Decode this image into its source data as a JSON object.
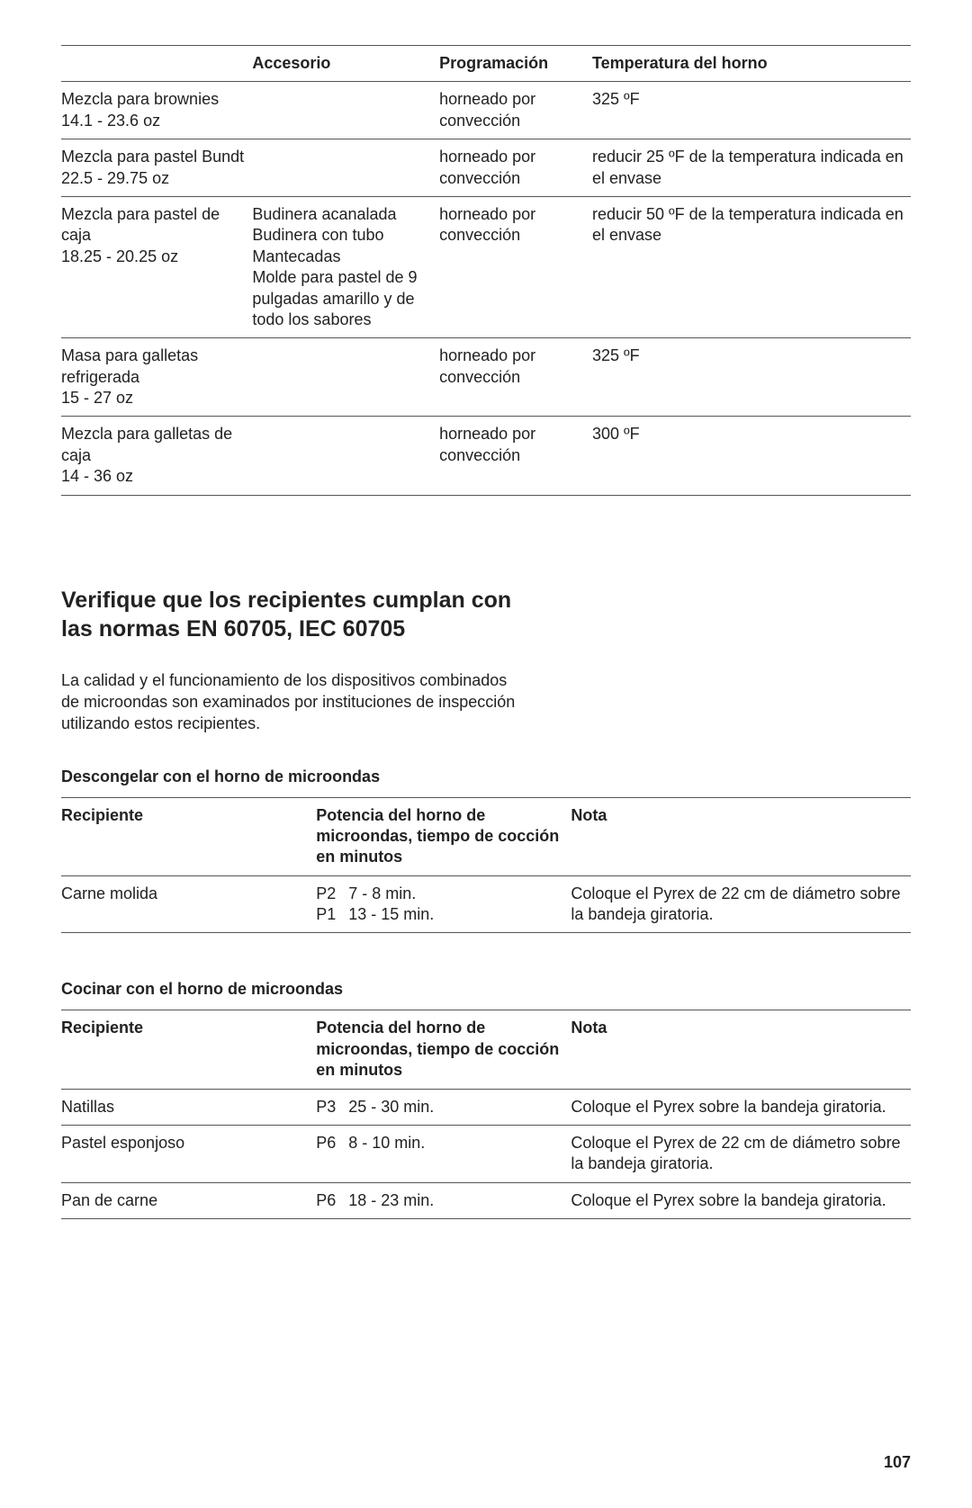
{
  "table1": {
    "headers": [
      "",
      "Accesorio",
      "Programación",
      "Temperatura del horno"
    ],
    "rows": [
      {
        "item": "Mezcla para brownies\n14.1 - 23.6 oz",
        "accesorio": "",
        "programacion": "horneado por convección",
        "temperatura": "325 ºF"
      },
      {
        "item": "Mezcla para pastel Bundt\n22.5 - 29.75 oz",
        "accesorio": "",
        "programacion": "horneado por convección",
        "temperatura": "reducir 25 ºF de la temperatura indicada en el envase"
      },
      {
        "item": "Mezcla para pastel de caja\n18.25 - 20.25 oz",
        "accesorio": "Budinera acanalada\nBudinera con tubo\nMantecadas\nMolde para pastel de 9 pulgadas amarillo y de todo los sabores",
        "programacion": "horneado por convección",
        "temperatura": "reducir 50 ºF de la temperatura indicada en el envase"
      },
      {
        "item": "Masa para galletas refrigerada\n15 - 27 oz",
        "accesorio": "",
        "programacion": "horneado por convección",
        "temperatura": "325 ºF"
      },
      {
        "item": "Mezcla para galletas de caja\n14 - 36 oz",
        "accesorio": "",
        "programacion": "horneado por convección",
        "temperatura": "300 ºF"
      }
    ]
  },
  "section": {
    "heading": "Verifique que los recipientes cumplan con las normas EN 60705, IEC 60705",
    "intro": "La calidad y el funcionamiento de los dispositivos combinados de microondas son examinados por instituciones de inspección utilizando estos recipientes."
  },
  "table2": {
    "title": "Descongelar con el horno de microondas",
    "headers": [
      "Recipiente",
      "Potencia del horno de microondas, tiempo de cocción en minutos",
      "Nota"
    ],
    "rows": [
      {
        "recipiente": "Carne molida",
        "powers": [
          {
            "code": "P2",
            "time": "7 - 8 min."
          },
          {
            "code": "P1",
            "time": "13 - 15 min."
          }
        ],
        "nota": "Coloque el Pyrex de 22 cm de diámetro sobre la bandeja giratoria."
      }
    ]
  },
  "table3": {
    "title": "Cocinar con el horno de microondas",
    "headers": [
      "Recipiente",
      "Potencia del horno de microondas, tiempo de cocción en minutos",
      "Nota"
    ],
    "rows": [
      {
        "recipiente": "Natillas",
        "powers": [
          {
            "code": "P3",
            "time": "25 - 30 min."
          }
        ],
        "nota": "Coloque el Pyrex sobre la bandeja giratoria."
      },
      {
        "recipiente": "Pastel esponjoso",
        "powers": [
          {
            "code": "P6",
            "time": "8 - 10 min."
          }
        ],
        "nota": "Coloque el Pyrex de 22 cm de diámetro sobre la bandeja giratoria."
      },
      {
        "recipiente": "Pan de carne",
        "powers": [
          {
            "code": "P6",
            "time": "18 - 23 min."
          }
        ],
        "nota": "Coloque el Pyrex sobre la bandeja giratoria."
      }
    ]
  },
  "page_number": "107"
}
